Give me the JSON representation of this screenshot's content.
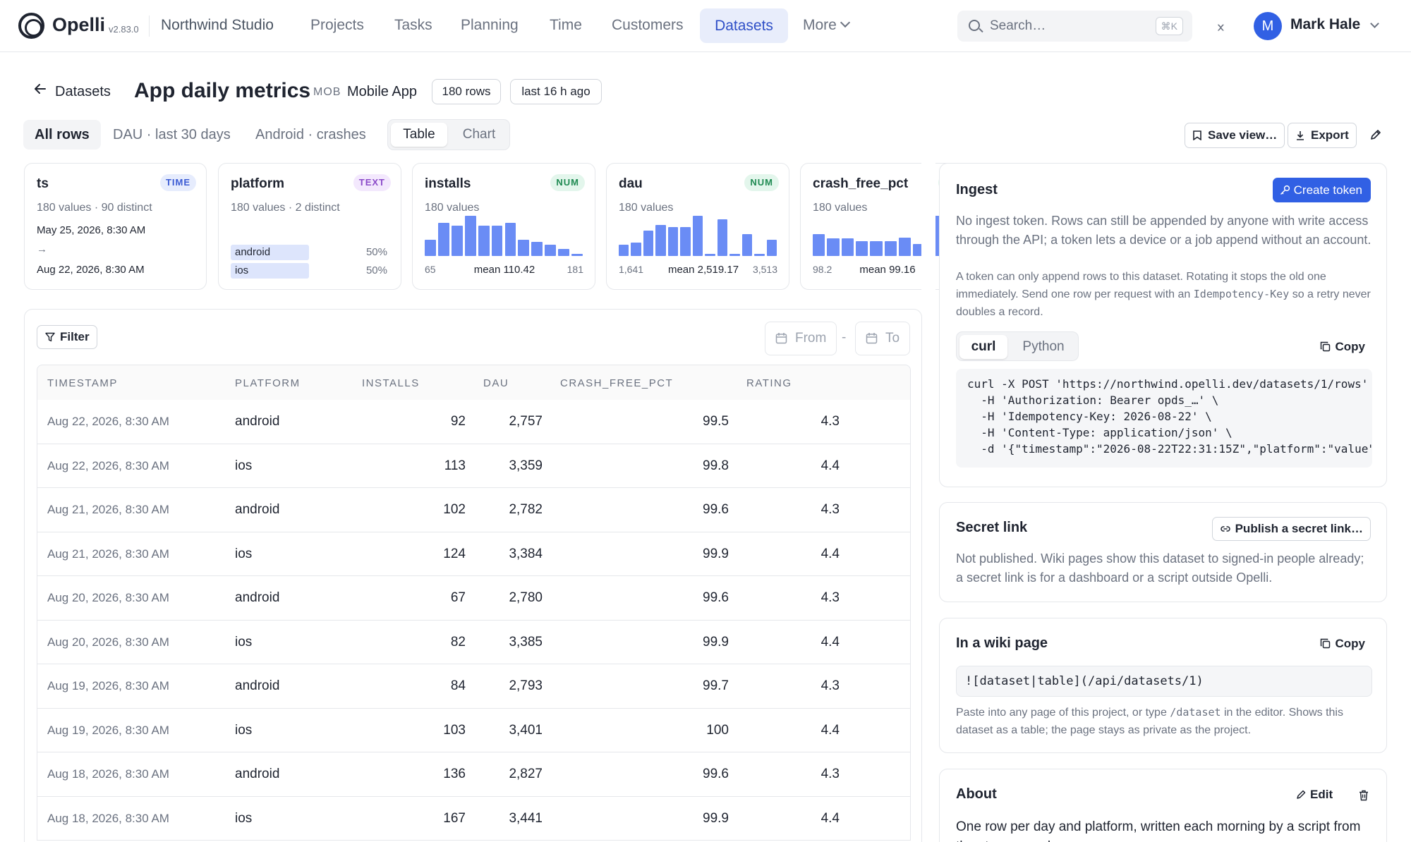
{
  "app": {
    "name": "Opelli",
    "version": "v2.83.0",
    "workspace": "Northwind Studio"
  },
  "nav": {
    "items": [
      "Projects",
      "Tasks",
      "Planning",
      "Time",
      "Customers"
    ],
    "active": "Datasets",
    "more": "More"
  },
  "search": {
    "placeholder": "Search…",
    "shortcut": "⌘K"
  },
  "user": {
    "initial": "M",
    "name": "Mark Hale"
  },
  "header": {
    "back_label": "Datasets",
    "title": "App daily metrics",
    "project_code": "MOB",
    "project_name": "Mobile App",
    "rows_pill": "180 rows",
    "updated_pill": "last 16 h ago"
  },
  "views": {
    "tabs": [
      "All rows",
      "DAU · last 30 days",
      "Android · crashes"
    ],
    "mode_table": "Table",
    "mode_chart": "Chart",
    "save_view": "Save view…",
    "export": "Export"
  },
  "columns": {
    "ts": {
      "name": "ts",
      "type": "TIME",
      "summary": "180 values · 90 distinct",
      "from": "May 25, 2026, 8:30 AM",
      "arrow": "→",
      "to": "Aug 22, 2026, 8:30 AM"
    },
    "platform": {
      "name": "platform",
      "type": "TEXT",
      "summary": "180 values · 2 distinct",
      "categories": [
        {
          "label": "android",
          "pct": "50%",
          "share": 0.5
        },
        {
          "label": "ios",
          "pct": "50%",
          "share": 0.5
        }
      ]
    },
    "installs": {
      "name": "installs",
      "type": "NUM",
      "summary": "180 values",
      "min": "65",
      "mean": "mean 110.42",
      "max": "181",
      "hist": [
        0.4,
        0.82,
        0.76,
        1.0,
        0.76,
        0.76,
        0.82,
        0.4,
        0.35,
        0.28,
        0.17,
        0.06
      ]
    },
    "dau": {
      "name": "dau",
      "type": "NUM",
      "summary": "180 values",
      "min": "1,641",
      "mean": "mean 2,519.17",
      "max": "3,513",
      "hist": [
        0.28,
        0.34,
        0.63,
        0.78,
        0.72,
        0.72,
        1.0,
        0.06,
        0.92,
        0.06,
        0.55,
        0.06,
        0.4
      ]
    },
    "crash_free_pct": {
      "name": "crash_free_pct",
      "type": "NUM",
      "summary": "180 values",
      "min": "98.2",
      "mean": "mean 99.16",
      "hist": [
        0.55,
        0.44,
        0.44,
        0.36,
        0.36,
        0.36,
        0.46,
        0.3,
        1.0
      ]
    }
  },
  "table": {
    "filter_label": "Filter",
    "from_label": "From",
    "dash": "-",
    "to_label": "To",
    "headers": [
      "TIMESTAMP",
      "PLATFORM",
      "INSTALLS",
      "DAU",
      "CRASH_FREE_PCT",
      "RATING"
    ],
    "rows": [
      [
        "Aug 22, 2026, 8:30 AM",
        "android",
        "92",
        "2,757",
        "99.5",
        "4.3"
      ],
      [
        "Aug 22, 2026, 8:30 AM",
        "ios",
        "113",
        "3,359",
        "99.8",
        "4.4"
      ],
      [
        "Aug 21, 2026, 8:30 AM",
        "android",
        "102",
        "2,782",
        "99.6",
        "4.3"
      ],
      [
        "Aug 21, 2026, 8:30 AM",
        "ios",
        "124",
        "3,384",
        "99.9",
        "4.4"
      ],
      [
        "Aug 20, 2026, 8:30 AM",
        "android",
        "67",
        "2,780",
        "99.6",
        "4.3"
      ],
      [
        "Aug 20, 2026, 8:30 AM",
        "ios",
        "82",
        "3,385",
        "99.9",
        "4.4"
      ],
      [
        "Aug 19, 2026, 8:30 AM",
        "android",
        "84",
        "2,793",
        "99.7",
        "4.3"
      ],
      [
        "Aug 19, 2026, 8:30 AM",
        "ios",
        "103",
        "3,401",
        "100",
        "4.4"
      ],
      [
        "Aug 18, 2026, 8:30 AM",
        "android",
        "136",
        "2,827",
        "99.6",
        "4.3"
      ],
      [
        "Aug 18, 2026, 8:30 AM",
        "ios",
        "167",
        "3,441",
        "99.9",
        "4.4"
      ]
    ]
  },
  "ingest": {
    "title": "Ingest",
    "create_token": "Create token",
    "intro": "No ingest token. Rows can still be appended by anyone with write access through the API; a token lets a device or a job append without an account.",
    "note_before": "A token can only append rows to this dataset. Rotating it stops the old one immediately. Send one row per request with an",
    "note_code": "Idempotency-Key",
    "note_after": "so a retry never doubles a record.",
    "lang_curl": "curl",
    "lang_python": "Python",
    "copy": "Copy",
    "code": [
      "curl -X POST 'https://northwind.opelli.dev/datasets/1/rows' \\",
      "  -H 'Authorization: Bearer opds_…' \\",
      "  -H 'Idempotency-Key: 2026-08-22' \\",
      "  -H 'Content-Type: application/json' \\",
      "  -d '{\"timestamp\":\"2026-08-22T22:31:15Z\",\"platform\":\"value\""
    ]
  },
  "secret_link": {
    "title": "Secret link",
    "publish": "Publish a secret link…",
    "text": "Not published. Wiki pages show this dataset to signed-in people already; a secret link is for a dashboard or a script outside Opelli."
  },
  "wiki": {
    "title": "In a wiki page",
    "copy": "Copy",
    "snippet": "![dataset|table](/api/datasets/1)",
    "hint_before": "Paste into any page of this project, or type",
    "hint_code": "/dataset",
    "hint_after": "in the editor. Shows this dataset as a table; the page stays as private as the project."
  },
  "about": {
    "title": "About",
    "edit": "Edit",
    "text": "One row per day and platform, written each morning by a script from the store consoles."
  },
  "colors": {
    "accent": "#3160e4",
    "nav_active_bg": "#e8edfb",
    "hist_bar": "#6a8cf5",
    "tag_time": "#3b5bd4",
    "tag_text": "#8b4bc9",
    "tag_num": "#1f8a52"
  }
}
